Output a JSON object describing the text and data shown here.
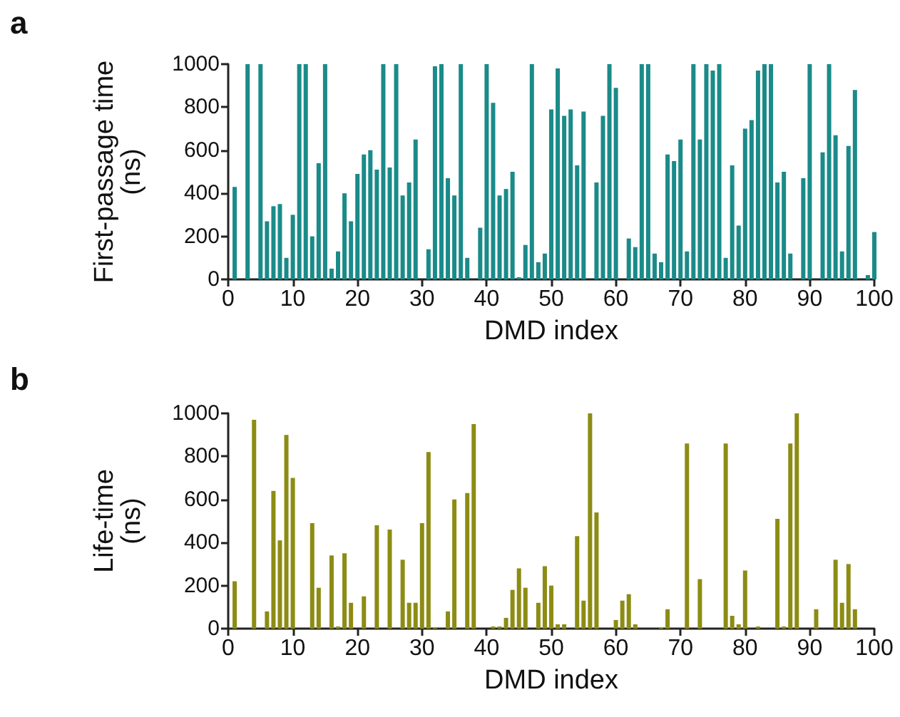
{
  "chart_data": [
    {
      "type": "bar",
      "title": "a",
      "xlabel": "DMD index",
      "ylabel": "First-passage time (ns)",
      "x": [
        0,
        1,
        2,
        3,
        4,
        5,
        6,
        7,
        8,
        9,
        10,
        11,
        12,
        13,
        14,
        15,
        16,
        17,
        18,
        19,
        20,
        21,
        22,
        23,
        24,
        25,
        26,
        27,
        28,
        29,
        30,
        31,
        32,
        33,
        34,
        35,
        36,
        37,
        38,
        39,
        40,
        41,
        42,
        43,
        44,
        45,
        46,
        47,
        48,
        49,
        50,
        51,
        52,
        53,
        54,
        55,
        56,
        57,
        58,
        59,
        60,
        61,
        62,
        63,
        64,
        65,
        66,
        67,
        68,
        69,
        70,
        71,
        72,
        73,
        74,
        75,
        76,
        77,
        78,
        79,
        80,
        81,
        82,
        83,
        84,
        85,
        86,
        87,
        88,
        89,
        90,
        91,
        92,
        93,
        94,
        95,
        96,
        97,
        98,
        99,
        100
      ],
      "values": [
        0,
        430,
        0,
        1000,
        0,
        1000,
        270,
        340,
        350,
        100,
        300,
        1000,
        1000,
        200,
        540,
        1000,
        50,
        130,
        400,
        270,
        490,
        580,
        600,
        510,
        1000,
        520,
        1000,
        390,
        450,
        650,
        0,
        140,
        990,
        1000,
        470,
        390,
        1000,
        100,
        0,
        240,
        1000,
        820,
        390,
        420,
        500,
        10,
        160,
        1000,
        80,
        120,
        790,
        980,
        760,
        790,
        530,
        780,
        0,
        450,
        760,
        1000,
        890,
        0,
        190,
        150,
        1000,
        1000,
        120,
        80,
        580,
        550,
        650,
        130,
        1000,
        650,
        1000,
        970,
        1000,
        100,
        530,
        250,
        700,
        740,
        970,
        1000,
        1000,
        450,
        500,
        120,
        0,
        470,
        1000,
        0,
        590,
        1000,
        670,
        130,
        620,
        880,
        0,
        20,
        220
      ],
      "color": "#1a8b89",
      "xlim": [
        0,
        100
      ],
      "xticks": [
        0,
        10,
        20,
        30,
        40,
        50,
        60,
        70,
        80,
        90,
        100
      ],
      "ylim": [
        0,
        1000
      ],
      "yticks": [
        0,
        200,
        400,
        600,
        800,
        1000
      ],
      "grid": false
    },
    {
      "type": "bar",
      "title": "b",
      "xlabel": "DMD index",
      "ylabel": "Life-time (ns)",
      "x": [
        0,
        1,
        2,
        3,
        4,
        5,
        6,
        7,
        8,
        9,
        10,
        11,
        12,
        13,
        14,
        15,
        16,
        17,
        18,
        19,
        20,
        21,
        22,
        23,
        24,
        25,
        26,
        27,
        28,
        29,
        30,
        31,
        32,
        33,
        34,
        35,
        36,
        37,
        38,
        39,
        40,
        41,
        42,
        43,
        44,
        45,
        46,
        47,
        48,
        49,
        50,
        51,
        52,
        53,
        54,
        55,
        56,
        57,
        58,
        59,
        60,
        61,
        62,
        63,
        64,
        65,
        66,
        67,
        68,
        69,
        70,
        71,
        72,
        73,
        74,
        75,
        76,
        77,
        78,
        79,
        80,
        81,
        82,
        83,
        84,
        85,
        86,
        87,
        88,
        89,
        90,
        91,
        92,
        93,
        94,
        95,
        96,
        97,
        98,
        99,
        100
      ],
      "values": [
        0,
        220,
        0,
        0,
        970,
        0,
        80,
        640,
        410,
        900,
        700,
        0,
        0,
        490,
        190,
        0,
        340,
        10,
        350,
        120,
        0,
        150,
        0,
        480,
        0,
        460,
        0,
        320,
        120,
        120,
        490,
        820,
        5,
        0,
        80,
        600,
        0,
        630,
        950,
        0,
        0,
        10,
        10,
        50,
        180,
        280,
        190,
        0,
        120,
        290,
        200,
        20,
        20,
        0,
        430,
        130,
        1000,
        540,
        0,
        0,
        40,
        130,
        160,
        20,
        0,
        0,
        0,
        5,
        90,
        0,
        0,
        860,
        0,
        230,
        0,
        0,
        0,
        860,
        60,
        20,
        270,
        0,
        10,
        0,
        0,
        510,
        10,
        860,
        1000,
        0,
        0,
        90,
        0,
        0,
        320,
        120,
        300,
        90,
        0,
        0,
        0
      ],
      "color": "#8c8c14",
      "xlim": [
        0,
        100
      ],
      "xticks": [
        0,
        10,
        20,
        30,
        40,
        50,
        60,
        70,
        80,
        90,
        100
      ],
      "ylim": [
        0,
        1000
      ],
      "yticks": [
        0,
        200,
        400,
        600,
        800,
        1000
      ],
      "grid": false
    }
  ]
}
